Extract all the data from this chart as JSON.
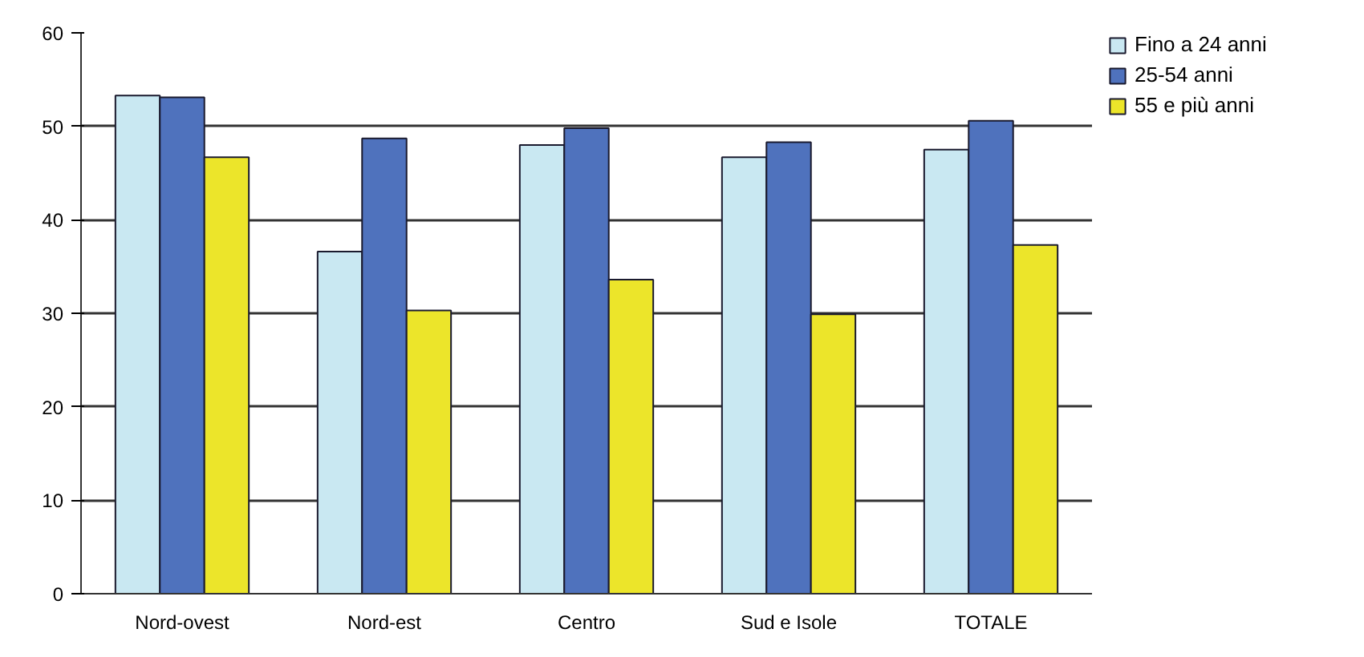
{
  "chart_data": {
    "type": "bar",
    "categories": [
      "Nord-ovest",
      "Nord-est",
      "Centro",
      "Sud e Isole",
      "TOTALE"
    ],
    "series": [
      {
        "name": "Fino a 24 anni",
        "color": "#c9e8f2",
        "values": [
          53.3,
          36.6,
          48.0,
          46.7,
          47.5
        ]
      },
      {
        "name": "25-54 anni",
        "color": "#4f72bd",
        "values": [
          53.1,
          48.7,
          49.8,
          48.3,
          50.6
        ]
      },
      {
        "name": "55 e più anni",
        "color": "#ece52a",
        "values": [
          46.7,
          30.3,
          33.6,
          29.9,
          37.3
        ]
      }
    ],
    "ylim": [
      0,
      60
    ],
    "yticks": [
      0,
      10,
      20,
      30,
      40,
      50,
      60
    ],
    "grid": "y",
    "legend": "top right"
  }
}
